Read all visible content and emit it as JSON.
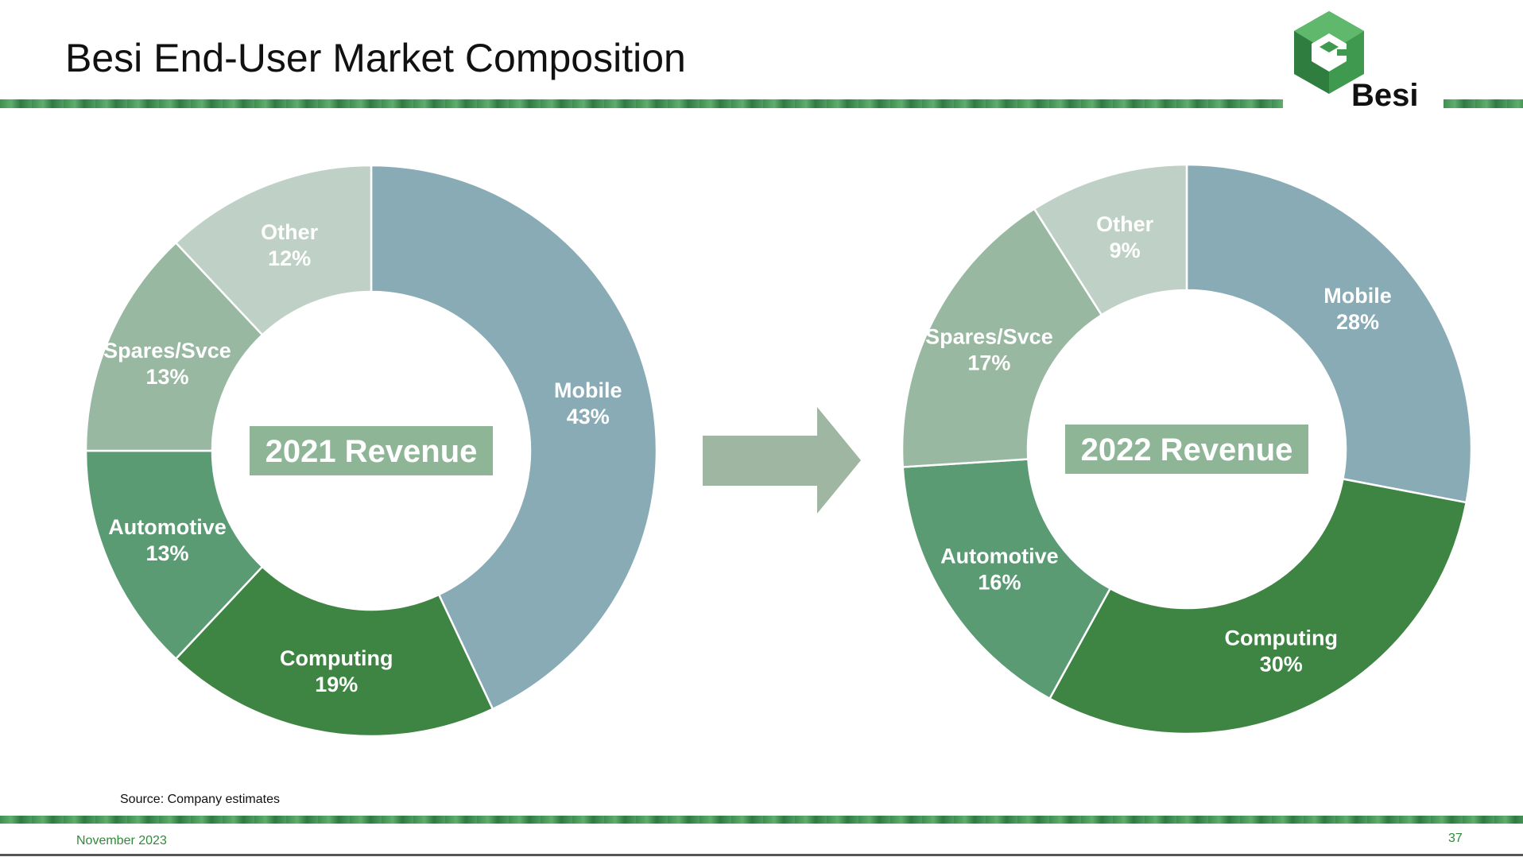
{
  "header": {
    "title": "Besi End-User Market Composition",
    "logo_text": "Besi"
  },
  "footer": {
    "source": "Source: Company estimates",
    "date": "November 2023",
    "page_number": "37"
  },
  "colors": {
    "mobile": "#89abb5",
    "computing": "#3e8443",
    "automotive": "#5b9b74",
    "spares": "#98b8a1",
    "other": "#bfd1c6",
    "center_box": "#8db596",
    "arrow": "#9fb6a2",
    "brand_green": "#3f8f52"
  },
  "chart_data": [
    {
      "type": "pie",
      "subtype": "donut",
      "center_label": "2021 Revenue",
      "categories": [
        "Mobile",
        "Computing",
        "Automotive",
        "Spares/Svce",
        "Other"
      ],
      "values": [
        43,
        19,
        13,
        13,
        12
      ],
      "value_labels": [
        "43%",
        "19%",
        "13%",
        "13%",
        "12%"
      ]
    },
    {
      "type": "pie",
      "subtype": "donut",
      "center_label": "2022 Revenue",
      "categories": [
        "Mobile",
        "Computing",
        "Automotive",
        "Spares/Svce",
        "Other"
      ],
      "values": [
        28,
        30,
        16,
        17,
        9
      ],
      "value_labels": [
        "28%",
        "30%",
        "16%",
        "17%",
        "9%"
      ]
    }
  ]
}
